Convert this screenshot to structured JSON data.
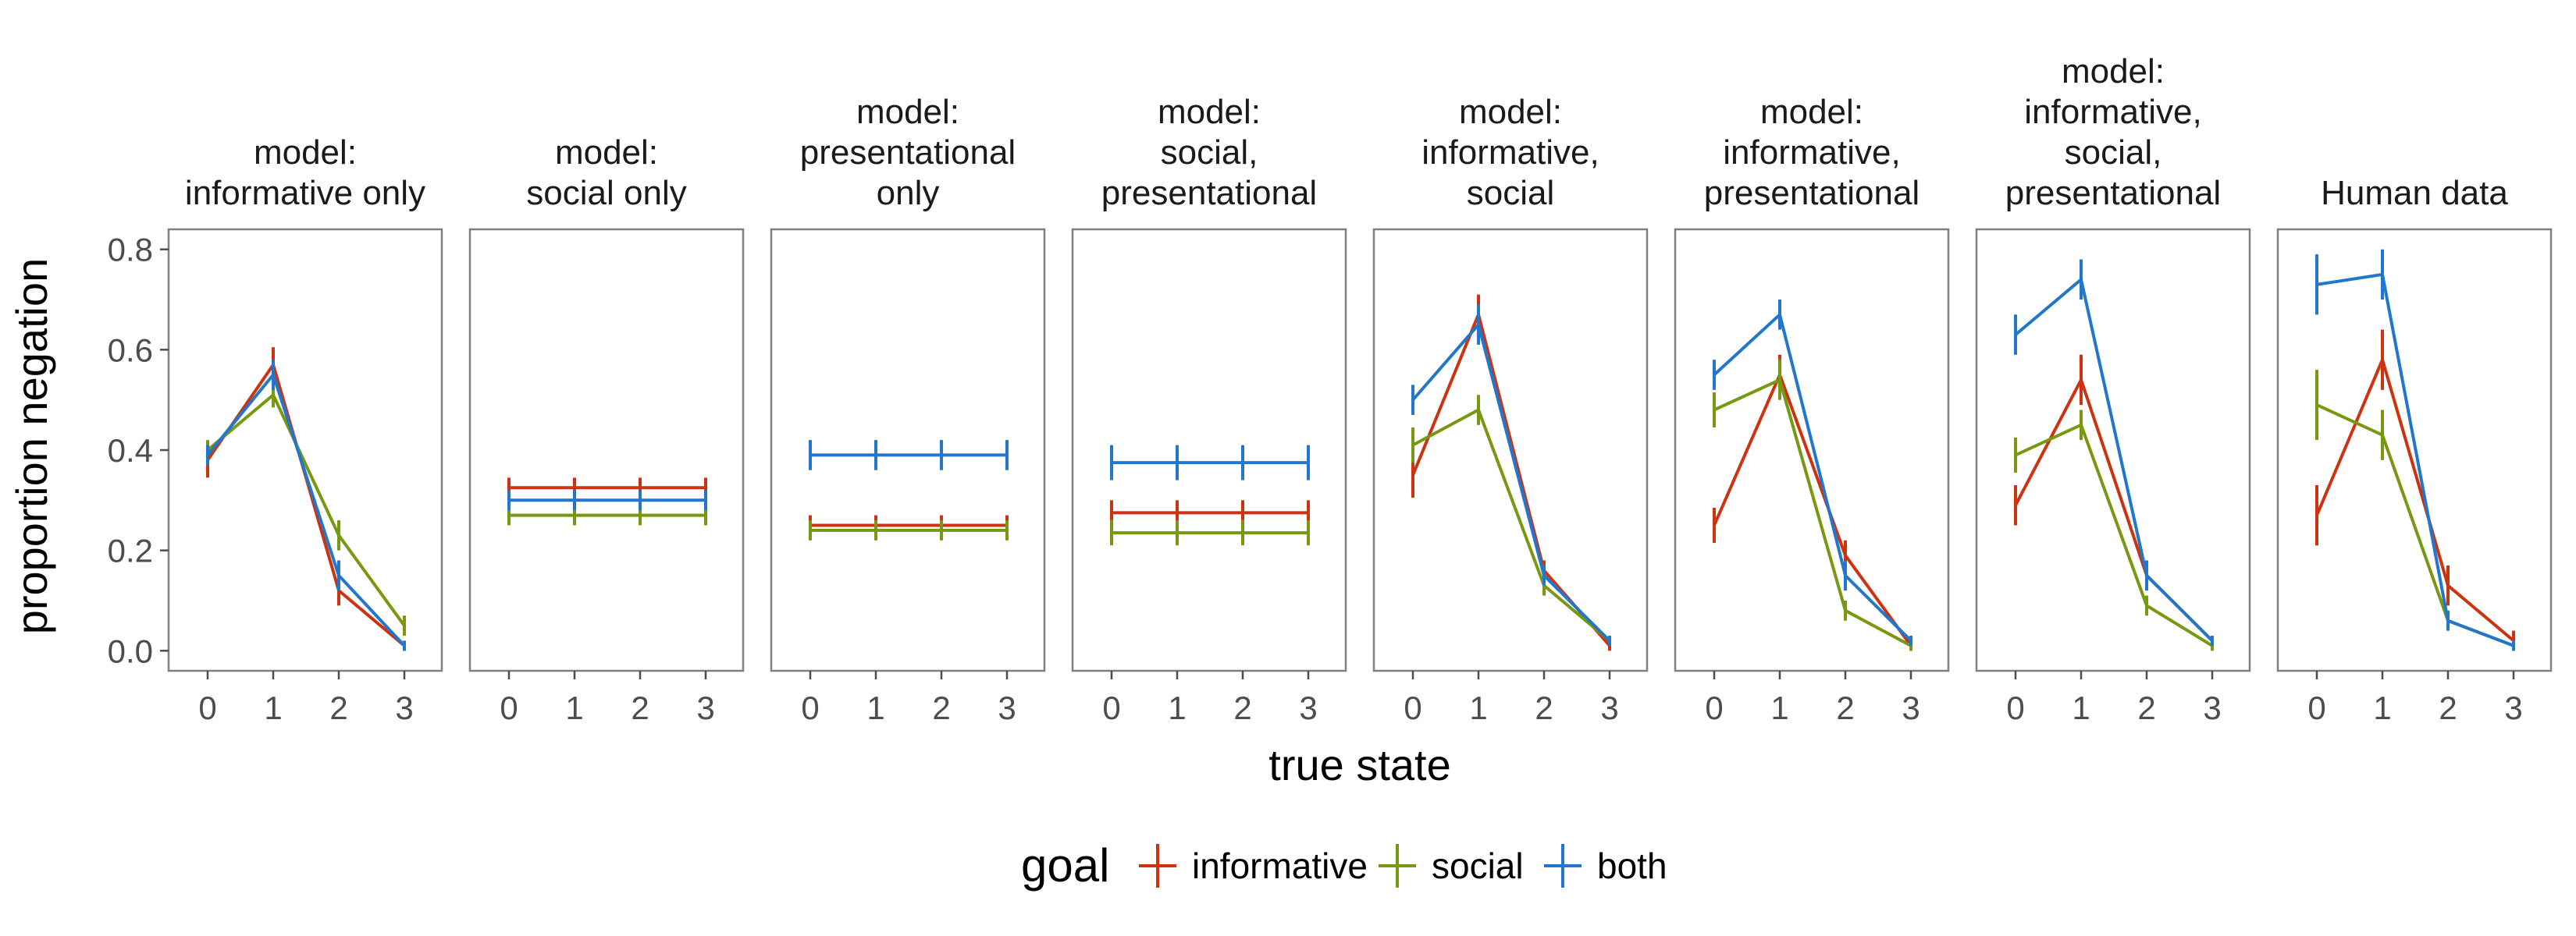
{
  "chart_data": {
    "type": "line",
    "xlabel": "true state",
    "ylabel": "proportion negation",
    "x": [
      0,
      1,
      2,
      3
    ],
    "x_ticks": [
      "0",
      "1",
      "2",
      "3"
    ],
    "ylim": [
      -0.04,
      0.84
    ],
    "y_ticks": [
      "0.0",
      "0.2",
      "0.4",
      "0.6",
      "0.8"
    ],
    "y_tick_values": [
      0.0,
      0.2,
      0.4,
      0.6,
      0.8
    ],
    "grid": false,
    "legend": {
      "title": "goal",
      "placement": "bottom",
      "entries": [
        "informative",
        "social",
        "both"
      ]
    },
    "colors": {
      "informative": "#cc3311",
      "social": "#779911",
      "both": "#2277cc"
    },
    "panels": [
      {
        "strip": [
          "model:",
          "informative only"
        ],
        "series": [
          {
            "name": "informative",
            "values": [
              0.38,
              0.57,
              0.12,
              0.01
            ],
            "err": [
              0.035,
              0.035,
              0.03,
              0.01
            ]
          },
          {
            "name": "social",
            "values": [
              0.4,
              0.51,
              0.23,
              0.05
            ],
            "err": [
              0.02,
              0.025,
              0.03,
              0.02
            ]
          },
          {
            "name": "both",
            "values": [
              0.39,
              0.55,
              0.15,
              0.01
            ],
            "err": [
              0.02,
              0.03,
              0.03,
              0.01
            ]
          }
        ]
      },
      {
        "strip": [
          "model:",
          "social only"
        ],
        "series": [
          {
            "name": "informative",
            "values": [
              0.325,
              0.325,
              0.325,
              0.325
            ],
            "err": [
              0.02,
              0.02,
              0.02,
              0.02
            ]
          },
          {
            "name": "social",
            "values": [
              0.27,
              0.27,
              0.27,
              0.27
            ],
            "err": [
              0.02,
              0.02,
              0.02,
              0.02
            ]
          },
          {
            "name": "both",
            "values": [
              0.3,
              0.3,
              0.3,
              0.3
            ],
            "err": [
              0.02,
              0.02,
              0.02,
              0.02
            ]
          }
        ]
      },
      {
        "strip": [
          "model:",
          "presentational",
          "only"
        ],
        "series": [
          {
            "name": "informative",
            "values": [
              0.25,
              0.25,
              0.25,
              0.25
            ],
            "err": [
              0.02,
              0.02,
              0.02,
              0.02
            ]
          },
          {
            "name": "social",
            "values": [
              0.24,
              0.24,
              0.24,
              0.24
            ],
            "err": [
              0.02,
              0.02,
              0.02,
              0.02
            ]
          },
          {
            "name": "both",
            "values": [
              0.39,
              0.39,
              0.39,
              0.39
            ],
            "err": [
              0.03,
              0.03,
              0.03,
              0.03
            ]
          }
        ]
      },
      {
        "strip": [
          "model:",
          "social,",
          "presentational"
        ],
        "series": [
          {
            "name": "informative",
            "values": [
              0.275,
              0.275,
              0.275,
              0.275
            ],
            "err": [
              0.025,
              0.025,
              0.025,
              0.025
            ]
          },
          {
            "name": "social",
            "values": [
              0.235,
              0.235,
              0.235,
              0.235
            ],
            "err": [
              0.025,
              0.025,
              0.025,
              0.025
            ]
          },
          {
            "name": "both",
            "values": [
              0.375,
              0.375,
              0.375,
              0.375
            ],
            "err": [
              0.035,
              0.035,
              0.035,
              0.035
            ]
          }
        ]
      },
      {
        "strip": [
          "model:",
          "informative,",
          "social"
        ],
        "series": [
          {
            "name": "informative",
            "values": [
              0.35,
              0.67,
              0.16,
              0.01
            ],
            "err": [
              0.045,
              0.04,
              0.02,
              0.01
            ]
          },
          {
            "name": "social",
            "values": [
              0.41,
              0.48,
              0.13,
              0.02
            ],
            "err": [
              0.035,
              0.03,
              0.02,
              0.01
            ]
          },
          {
            "name": "both",
            "values": [
              0.5,
              0.65,
              0.15,
              0.02
            ],
            "err": [
              0.03,
              0.04,
              0.02,
              0.01
            ]
          }
        ]
      },
      {
        "strip": [
          "model:",
          "informative,",
          "presentational"
        ],
        "series": [
          {
            "name": "informative",
            "values": [
              0.25,
              0.55,
              0.19,
              0.01
            ],
            "err": [
              0.035,
              0.04,
              0.03,
              0.01
            ]
          },
          {
            "name": "social",
            "values": [
              0.48,
              0.54,
              0.08,
              0.01
            ],
            "err": [
              0.035,
              0.04,
              0.02,
              0.01
            ]
          },
          {
            "name": "both",
            "values": [
              0.55,
              0.67,
              0.15,
              0.02
            ],
            "err": [
              0.03,
              0.03,
              0.03,
              0.01
            ]
          }
        ]
      },
      {
        "strip": [
          "model:",
          "informative,",
          "social,",
          "presentational"
        ],
        "series": [
          {
            "name": "informative",
            "values": [
              0.29,
              0.54,
              0.15,
              0.02
            ],
            "err": [
              0.04,
              0.05,
              0.03,
              0.01
            ]
          },
          {
            "name": "social",
            "values": [
              0.39,
              0.45,
              0.09,
              0.01
            ],
            "err": [
              0.035,
              0.03,
              0.02,
              0.01
            ]
          },
          {
            "name": "both",
            "values": [
              0.63,
              0.74,
              0.15,
              0.02
            ],
            "err": [
              0.04,
              0.04,
              0.03,
              0.01
            ]
          }
        ]
      },
      {
        "strip": [
          "Human data"
        ],
        "series": [
          {
            "name": "informative",
            "values": [
              0.27,
              0.58,
              0.13,
              0.02
            ],
            "err": [
              0.06,
              0.06,
              0.04,
              0.02
            ]
          },
          {
            "name": "social",
            "values": [
              0.49,
              0.43,
              0.06,
              0.01
            ],
            "err": [
              0.07,
              0.05,
              0.02,
              0.01
            ]
          },
          {
            "name": "both",
            "values": [
              0.73,
              0.75,
              0.06,
              0.01
            ],
            "err": [
              0.06,
              0.05,
              0.02,
              0.01
            ]
          }
        ]
      }
    ]
  }
}
